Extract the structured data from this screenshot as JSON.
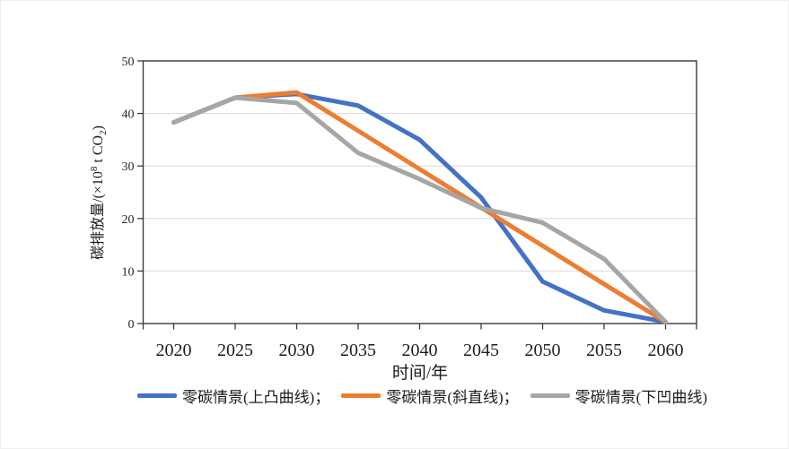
{
  "chart_data": {
    "type": "line",
    "title": "",
    "xlabel": "时间/年",
    "ylabel": "碳排放量/(×10⁸ t CO₂)",
    "ylabel_parts": {
      "prefix": "碳排放量/(×10",
      "sup": "8",
      "mid": " t CO",
      "sub": "2",
      "suffix": ")"
    },
    "x": [
      2020,
      2025,
      2030,
      2035,
      2040,
      2045,
      2050,
      2055,
      2060
    ],
    "x_tick_labels": [
      "2020",
      "2025",
      "2030",
      "2035",
      "2040",
      "2045",
      "2050",
      "2055",
      "2060"
    ],
    "y_ticks": [
      0,
      10,
      20,
      30,
      40,
      50
    ],
    "y_tick_labels": [
      "0",
      "10",
      "20",
      "30",
      "40",
      "50"
    ],
    "ylim": [
      0,
      50
    ],
    "grid": "horizontal-only",
    "legend_position": "bottom",
    "axis_color": "#3a3a3a",
    "gridline_color": "#d9d9d9",
    "line_width": 5,
    "series": [
      {
        "name": "零碳情景(上凸曲线)",
        "legend_label": "零碳情景(上凸曲线)；",
        "color": "#4472C4",
        "values": [
          38.3,
          43.0,
          43.7,
          41.5,
          35.0,
          24.0,
          8.0,
          2.5,
          0.3
        ]
      },
      {
        "name": "零碳情景(斜直线)",
        "legend_label": "零碳情景(斜直线)；",
        "color": "#ED7D31",
        "values": [
          38.3,
          43.0,
          44.0,
          36.7,
          29.4,
          22.1,
          14.8,
          7.5,
          0.3
        ]
      },
      {
        "name": "零碳情景(下凹曲线)",
        "legend_label": "零碳情景(下凹曲线)",
        "color": "#A6A6A6",
        "values": [
          38.3,
          43.0,
          42.0,
          32.5,
          27.5,
          22.0,
          19.2,
          12.3,
          0.3
        ]
      }
    ]
  }
}
